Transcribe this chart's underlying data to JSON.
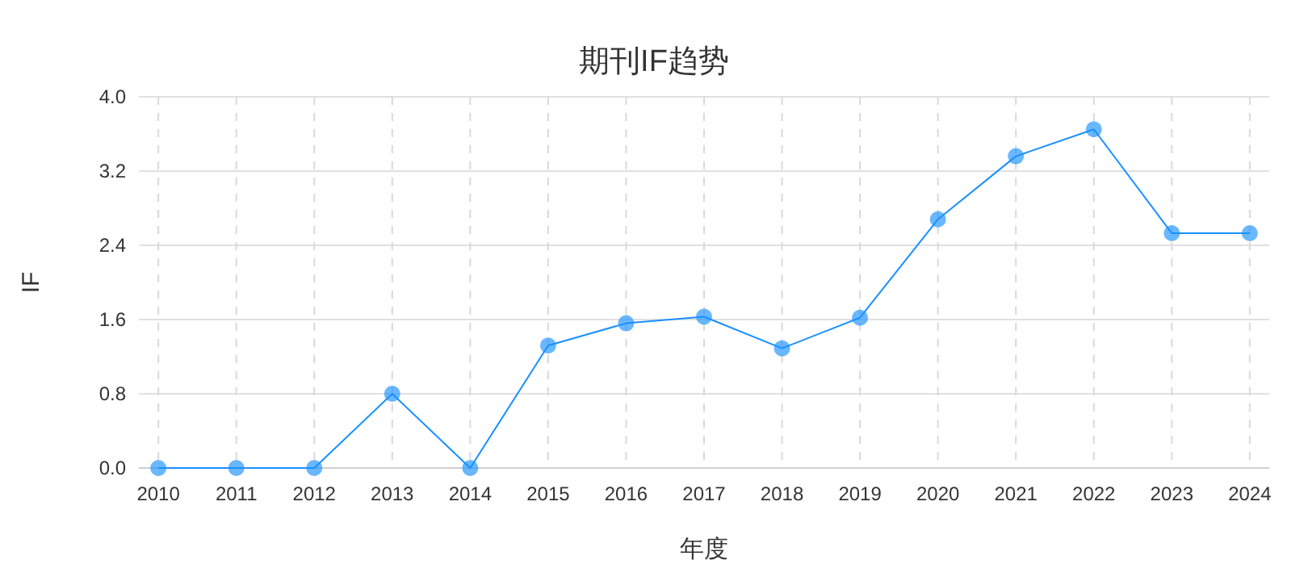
{
  "chart_data": {
    "type": "line",
    "title": "期刊IF趋势",
    "xlabel": "年度",
    "ylabel": "IF",
    "categories": [
      "2010",
      "2011",
      "2012",
      "2013",
      "2014",
      "2015",
      "2016",
      "2017",
      "2018",
      "2019",
      "2020",
      "2021",
      "2022",
      "2023",
      "2024"
    ],
    "series": [
      {
        "color": "#1890ff",
        "values": [
          0,
          0,
          0,
          0.8,
          0,
          1.32,
          1.56,
          1.63,
          1.29,
          1.62,
          2.68,
          3.36,
          3.65,
          2.53,
          2.53
        ]
      }
    ],
    "ylim": [
      0,
      4.0
    ],
    "yticks": [
      {
        "value": 0,
        "label": "0.0"
      },
      {
        "value": 0.8,
        "label": "0.8"
      },
      {
        "value": 1.6,
        "label": "1.6"
      },
      {
        "value": 2.4,
        "label": "2.4"
      },
      {
        "value": 3.2,
        "label": "3.2"
      },
      {
        "value": 4.0,
        "label": "4.0"
      }
    ],
    "grid": true,
    "marker": "circle",
    "line_style": "solid"
  }
}
